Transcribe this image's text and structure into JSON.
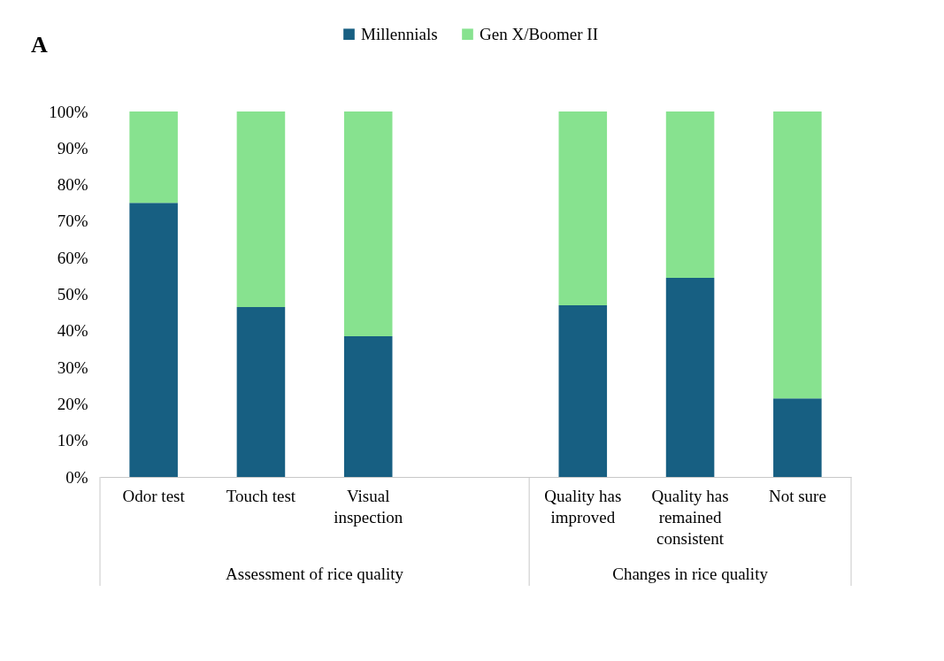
{
  "chart_data": {
    "type": "bar",
    "title": "A",
    "stacked": true,
    "legend": "top",
    "categories": [
      "Odor test",
      "Touch test",
      "Visual inspection",
      null,
      "Quality has improved",
      "Quality has remained consistent",
      "Not sure"
    ],
    "series": [
      {
        "name": "Millennials",
        "color": "#175f82",
        "values": [
          75,
          46.5,
          38.5,
          null,
          47,
          54.5,
          21.5
        ]
      },
      {
        "name": "Gen X/Boomer II",
        "color": "#87e28f",
        "values": [
          25,
          53.5,
          61.5,
          null,
          53,
          45.5,
          78.5
        ]
      }
    ],
    "ylim": [
      0,
      100
    ],
    "yticks": [
      {
        "value": 0,
        "label": "0%"
      },
      {
        "value": 10,
        "label": "10%"
      },
      {
        "value": 20,
        "label": "20%"
      },
      {
        "value": 30,
        "label": "30%"
      },
      {
        "value": 40,
        "label": "40%"
      },
      {
        "value": 50,
        "label": "50%"
      },
      {
        "value": 60,
        "label": "60%"
      },
      {
        "value": 70,
        "label": "70%"
      },
      {
        "value": 80,
        "label": "80%"
      },
      {
        "value": 90,
        "label": "90%"
      },
      {
        "value": 100,
        "label": "100%"
      }
    ],
    "annotations": [
      "Assessment of rice quality",
      "Changes in rice quality"
    ]
  }
}
